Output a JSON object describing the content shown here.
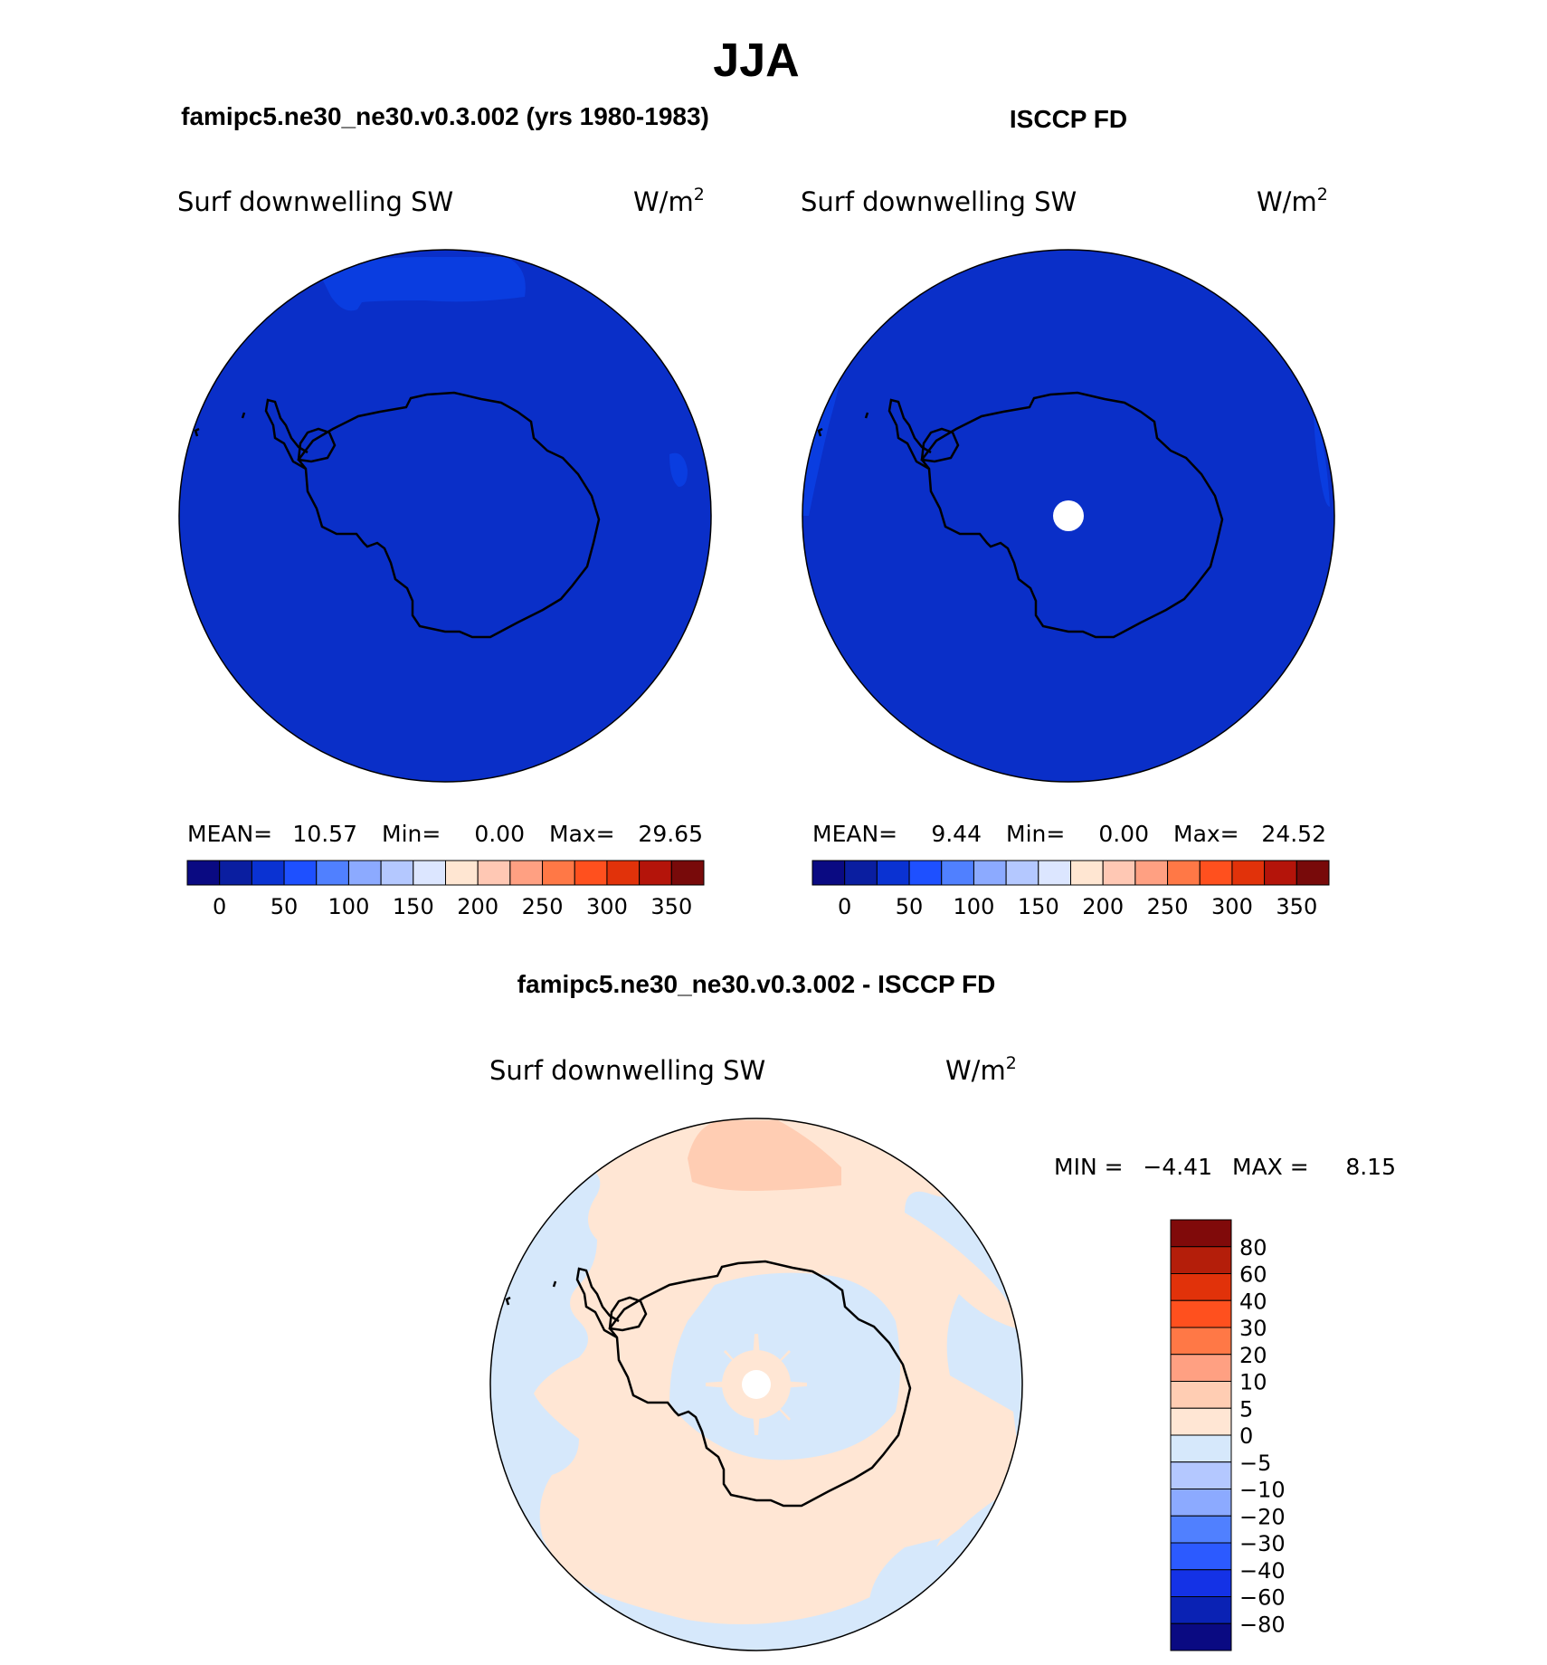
{
  "figure": {
    "title": "JJA",
    "panel_left_title": "famipc5.ne30_ne30.v0.3.002 (yrs 1980-1983)",
    "panel_right_title": "ISCCP FD",
    "panel_diff_title": "famipc5.ne30_ne30.v0.3.002 - ISCCP FD"
  },
  "colors": {
    "map_fill_dominant": "#0a2fc8",
    "diff_positive": "#ffe6d4",
    "diff_negative": "#d6e8fb",
    "diff_peak": "#ffcdb3",
    "missing": "#ffffff"
  },
  "chart_data": [
    {
      "type": "heatmap",
      "projection": "south-polar-stereographic",
      "variable": "Surf downwelling SW",
      "units_base": "W/m",
      "units_exp": "2",
      "stats": {
        "mean_label": "MEAN=",
        "mean": "10.57",
        "min_label": "Min=",
        "min": "0.00",
        "max_label": "Max=",
        "max": "29.65"
      },
      "colorbar": {
        "orientation": "horizontal",
        "colors": [
          "#0a0a82",
          "#0a1ea0",
          "#0a32d2",
          "#1e50ff",
          "#5080ff",
          "#8caaff",
          "#b4c8ff",
          "#dce6ff",
          "#ffe6d2",
          "#ffc8b4",
          "#ffa082",
          "#ff7846",
          "#ff501e",
          "#e1320a",
          "#b4140a",
          "#780a0a"
        ],
        "tick_labels": [
          "0",
          "50",
          "100",
          "150",
          "200",
          "250",
          "300",
          "350"
        ]
      }
    },
    {
      "type": "heatmap",
      "projection": "south-polar-stereographic",
      "variable": "Surf downwelling SW",
      "units_base": "W/m",
      "units_exp": "2",
      "stats": {
        "mean_label": "MEAN=",
        "mean": "9.44",
        "min_label": "Min=",
        "min": "0.00",
        "max_label": "Max=",
        "max": "24.52"
      },
      "colorbar": {
        "orientation": "horizontal",
        "colors": [
          "#0a0a82",
          "#0a1ea0",
          "#0a32d2",
          "#1e50ff",
          "#5080ff",
          "#8caaff",
          "#b4c8ff",
          "#dce6ff",
          "#ffe6d2",
          "#ffc8b4",
          "#ffa082",
          "#ff7846",
          "#ff501e",
          "#e1320a",
          "#b4140a",
          "#780a0a"
        ],
        "tick_labels": [
          "0",
          "50",
          "100",
          "150",
          "200",
          "250",
          "300",
          "350"
        ]
      }
    },
    {
      "type": "heatmap",
      "projection": "south-polar-stereographic",
      "variable": "Surf downwelling SW",
      "units_base": "W/m",
      "units_exp": "2",
      "stats": {
        "min_label": "MIN =",
        "min": "−4.41",
        "max_label": "MAX =",
        "max": "8.15"
      },
      "colorbar": {
        "orientation": "vertical",
        "colors": [
          "#800a0a",
          "#b41e0a",
          "#e1320a",
          "#ff501e",
          "#ff7846",
          "#ffa082",
          "#ffcdb3",
          "#ffe6d4",
          "#d6e8fb",
          "#b4c8ff",
          "#8caaff",
          "#5080ff",
          "#2c5aff",
          "#1432e6",
          "#0a22b4",
          "#0a0a82"
        ],
        "tick_labels": [
          "80",
          "60",
          "40",
          "30",
          "20",
          "10",
          "5",
          "0",
          "−5",
          "−10",
          "−20",
          "−30",
          "−40",
          "−60",
          "−80"
        ]
      }
    }
  ]
}
